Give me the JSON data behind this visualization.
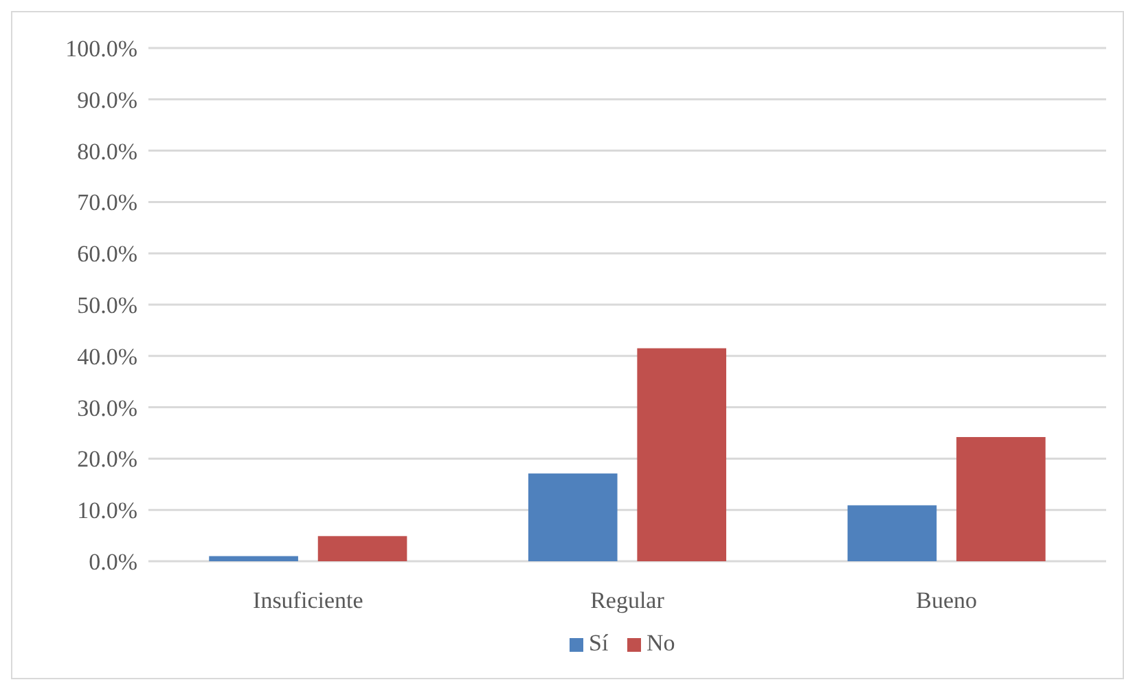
{
  "chart_data": {
    "type": "bar",
    "categories": [
      "Insuficiente",
      "Regular",
      "Bueno"
    ],
    "series": [
      {
        "name": "Sí",
        "color": "#4f81bd",
        "values": [
          1.0,
          17.1,
          10.9
        ]
      },
      {
        "name": "No",
        "color": "#c0504d",
        "values": [
          4.9,
          41.5,
          24.2
        ]
      }
    ],
    "ylim": [
      0,
      100
    ],
    "yticks": [
      {
        "value": 0,
        "label": "0.0%"
      },
      {
        "value": 10,
        "label": "10.0%"
      },
      {
        "value": 20,
        "label": "20.0%"
      },
      {
        "value": 30,
        "label": "30.0%"
      },
      {
        "value": 40,
        "label": "40.0%"
      },
      {
        "value": 50,
        "label": "50.0%"
      },
      {
        "value": 60,
        "label": "60.0%"
      },
      {
        "value": 70,
        "label": "70.0%"
      },
      {
        "value": 80,
        "label": "80.0%"
      },
      {
        "value": 90,
        "label": "90.0%"
      },
      {
        "value": 100,
        "label": "100.0%"
      }
    ],
    "grid": "y",
    "legend": "bottom"
  }
}
